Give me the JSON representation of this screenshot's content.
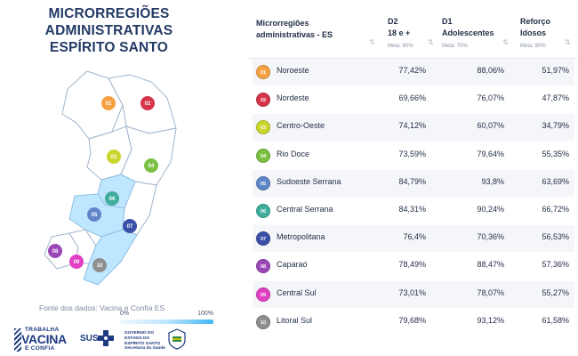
{
  "title_line1": "MICRORREGIÕES ADMINISTRATIVAS",
  "title_line2": "ESPÍRITO SANTO",
  "source": "Fonte dos dados: Vacina e Confia ES",
  "legend": {
    "min": "0%",
    "max": "100%"
  },
  "logos": {
    "vacina_l1": "TRABALHA",
    "vacina_l2": "VACINA",
    "vacina_l3": "E CONFIA",
    "sus": "SUS",
    "gov": "GOVERNO DO ESTADO DO ESPÍRITO SANTO Secretaria da Saúde"
  },
  "table": {
    "headers": {
      "region": [
        "Microrregiões",
        "administrativas - ES"
      ],
      "d2": [
        "D2",
        "18 e +"
      ],
      "d2_meta": "Meta: 80%",
      "d1": [
        "D1",
        "Adolescentes"
      ],
      "d1_meta": "Meta: 70%",
      "ref": [
        "Reforço",
        "Idosos"
      ],
      "ref_meta": "Meta: 90%"
    },
    "rows": [
      {
        "num": "01",
        "name": "Noroeste",
        "d2": "77,42%",
        "d1": "88,06%",
        "ref": "51,97%",
        "color": "#f5a142"
      },
      {
        "num": "02",
        "name": "Nordeste",
        "d2": "69,66%",
        "d1": "76,07%",
        "ref": "47,87%",
        "color": "#d6344a"
      },
      {
        "num": "03",
        "name": "Centro-Oeste",
        "d2": "74,12%",
        "d1": "60,07%",
        "ref": "34,79%",
        "color": "#cad62c"
      },
      {
        "num": "04",
        "name": "Rio Doce",
        "d2": "73,59%",
        "d1": "79,64%",
        "ref": "55,35%",
        "color": "#7cc043"
      },
      {
        "num": "05",
        "name": "Sudoeste Serrana",
        "d2": "84,79%",
        "d1": "93,8%",
        "ref": "63,69%",
        "color": "#5f86c8"
      },
      {
        "num": "06",
        "name": "Central Serrana",
        "d2": "84,31%",
        "d1": "90,24%",
        "ref": "66,72%",
        "color": "#3fae9c"
      },
      {
        "num": "07",
        "name": "Metropolitana",
        "d2": "76,4%",
        "d1": "70,36%",
        "ref": "56,53%",
        "color": "#3a4fa8"
      },
      {
        "num": "08",
        "name": "Caparaó",
        "d2": "78,49%",
        "d1": "88,47%",
        "ref": "57,36%",
        "color": "#9a47b8"
      },
      {
        "num": "09",
        "name": "Central Sul",
        "d2": "73,01%",
        "d1": "78,07%",
        "ref": "55,27%",
        "color": "#e23fc2"
      },
      {
        "num": "10",
        "name": "Litoral Sul",
        "d2": "79,68%",
        "d1": "93,12%",
        "ref": "61,58%",
        "color": "#8e8e8e"
      }
    ]
  }
}
